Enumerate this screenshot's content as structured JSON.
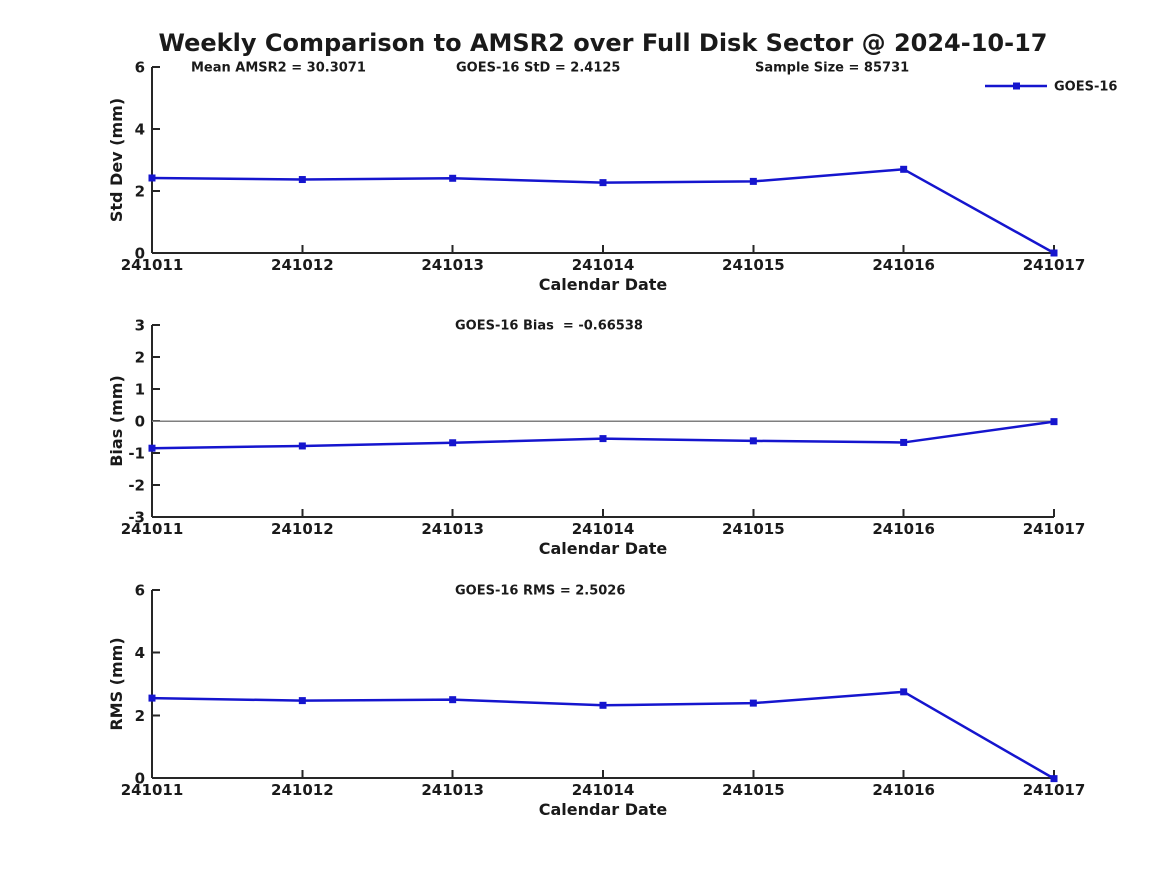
{
  "title": "Weekly Comparison to AMSR2 over Full Disk Sector @ 2024-10-17",
  "legend": {
    "label": "GOES-16",
    "position": "top-right"
  },
  "colors": {
    "line": "#1515CE",
    "axis": "#262626",
    "text": "#1a1a1a",
    "zero_line": "#7f7f7f",
    "background": "#ffffff"
  },
  "chart_data": [
    {
      "type": "line",
      "panel": "std-dev",
      "x": [
        241011,
        241012,
        241013,
        241014,
        241015,
        241016,
        241017
      ],
      "series": [
        {
          "name": "GOES-16",
          "values": [
            2.42,
            2.37,
            2.41,
            2.27,
            2.31,
            2.7,
            0.0
          ]
        }
      ],
      "xlabel": "Calendar Date",
      "ylabel": "Std Dev (mm)",
      "ylim": [
        0,
        6
      ],
      "yticks": [
        0,
        2,
        4,
        6
      ],
      "grid": false,
      "zero_line": false,
      "annotations": [
        {
          "text": "Mean AMSR2 = 30.3071",
          "x": 191
        },
        {
          "text": "GOES-16 StD = 2.4125",
          "x": 456
        },
        {
          "text": "Sample Size = 85731",
          "x": 755
        }
      ]
    },
    {
      "type": "line",
      "panel": "bias",
      "x": [
        241011,
        241012,
        241013,
        241014,
        241015,
        241016,
        241017
      ],
      "series": [
        {
          "name": "GOES-16",
          "values": [
            -0.85,
            -0.78,
            -0.68,
            -0.55,
            -0.62,
            -0.67,
            -0.02
          ]
        }
      ],
      "xlabel": "Calendar Date",
      "ylabel": "Bias (mm)",
      "ylim": [
        -3,
        3
      ],
      "yticks": [
        -3,
        -2,
        -1,
        0,
        1,
        2,
        3
      ],
      "grid": false,
      "zero_line": true,
      "annotations": [
        {
          "text": "GOES-16 Bias  = -0.66538",
          "x": 455
        }
      ]
    },
    {
      "type": "line",
      "panel": "rms",
      "x": [
        241011,
        241012,
        241013,
        241014,
        241015,
        241016,
        241017
      ],
      "series": [
        {
          "name": "GOES-16",
          "values": [
            2.55,
            2.47,
            2.5,
            2.32,
            2.39,
            2.75,
            -0.02
          ]
        }
      ],
      "xlabel": "Calendar Date",
      "ylabel": "RMS (mm)",
      "ylim": [
        0,
        6
      ],
      "yticks": [
        0,
        2,
        4,
        6
      ],
      "grid": false,
      "zero_line": false,
      "annotations": [
        {
          "text": "GOES-16 RMS = 2.5026",
          "x": 455
        }
      ]
    }
  ]
}
